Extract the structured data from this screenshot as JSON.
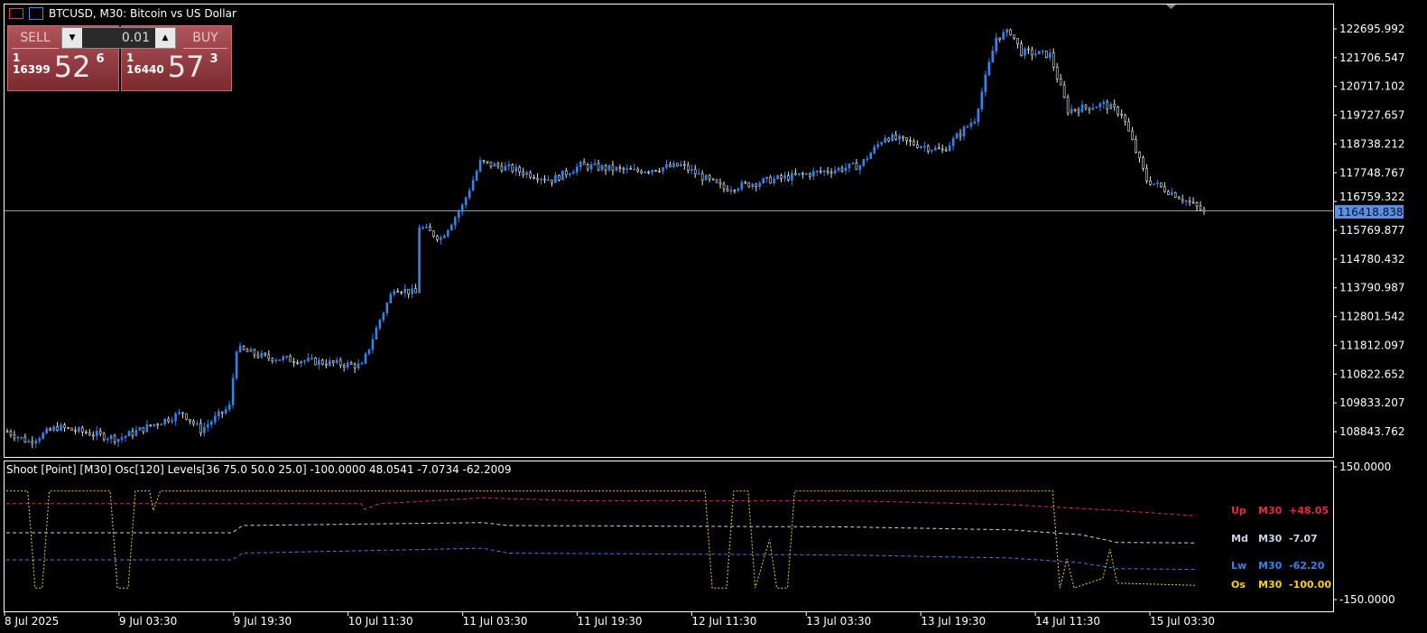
{
  "window": {
    "symbol_title": "BTCUSD, M30:  Bitcoin vs US Dollar"
  },
  "trade_panel": {
    "sell_label": "SELL",
    "buy_label": "BUY",
    "lot_value": "0.01",
    "sell_price": {
      "prefix_top": "1",
      "prefix_bottom": "16399",
      "big": "52",
      "sup": "6"
    },
    "buy_price": {
      "prefix_top": "1",
      "prefix_bottom": "16440",
      "big": "57",
      "sup": "3"
    }
  },
  "price_axis": {
    "labels": [
      "122695.992",
      "121706.547",
      "120717.102",
      "119727.657",
      "118738.212",
      "117748.767",
      "116759.322",
      "115769.877",
      "114780.432",
      "113790.987",
      "112801.542",
      "111812.097",
      "110822.652",
      "109833.207",
      "108843.762"
    ],
    "current_price": "116418.838",
    "current_price_color": "#5b8fe0"
  },
  "time_axis": {
    "labels": [
      "8 Jul 2025",
      "9 Jul 03:30",
      "9 Jul 19:30",
      "10 Jul 11:30",
      "11 Jul 03:30",
      "11 Jul 19:30",
      "12 Jul 11:30",
      "13 Jul 03:30",
      "13 Jul 19:30",
      "14 Jul 11:30",
      "15 Jul 03:30"
    ]
  },
  "colors": {
    "bull": "#2f86f0",
    "bear": "#e8e8e8",
    "up": "#e8283c",
    "md": "#c8d4e8",
    "lw": "#2f86f0",
    "os": "#ffd200"
  },
  "chart_data": {
    "type": "candlestick",
    "timeframe": "M30",
    "approx_close_path": [
      [
        0,
        108850
      ],
      [
        6,
        108500
      ],
      [
        14,
        109000
      ],
      [
        31,
        108600
      ],
      [
        49,
        109500
      ],
      [
        54,
        108900
      ],
      [
        62,
        109700
      ],
      [
        64,
        111700
      ],
      [
        72,
        111400
      ],
      [
        82,
        111300
      ],
      [
        99,
        111100
      ],
      [
        104,
        112700
      ],
      [
        108,
        113800
      ],
      [
        114,
        113600
      ],
      [
        115,
        115900
      ],
      [
        121,
        115500
      ],
      [
        127,
        116600
      ],
      [
        132,
        118100
      ],
      [
        140,
        117900
      ],
      [
        152,
        117500
      ],
      [
        160,
        118000
      ],
      [
        175,
        117800
      ],
      [
        188,
        118000
      ],
      [
        200,
        117200
      ],
      [
        213,
        117500
      ],
      [
        238,
        118000
      ],
      [
        245,
        119000
      ],
      [
        261,
        118500
      ],
      [
        270,
        119600
      ],
      [
        276,
        122400
      ],
      [
        280,
        122600
      ],
      [
        283,
        121900
      ],
      [
        291,
        121800
      ],
      [
        296,
        119900
      ],
      [
        306,
        120100
      ],
      [
        311,
        119800
      ],
      [
        318,
        117500
      ],
      [
        326,
        117000
      ],
      [
        334,
        116419
      ]
    ],
    "indicator": {
      "legend": "Shoot [Point] [M30]  Osc[120]  Levels[36 75.0 50.0 25.0] -100.0000 48.0541 -7.0734 -62.2009",
      "ylim": [
        -150,
        150
      ],
      "axis_labels": [
        "150.0000",
        "-150.0000"
      ],
      "up": [
        [
          0,
          74
        ],
        [
          99,
          74
        ],
        [
          100,
          62
        ],
        [
          104,
          74
        ],
        [
          133,
          86
        ],
        [
          160,
          80
        ],
        [
          235,
          80
        ],
        [
          280,
          72
        ],
        [
          310,
          60
        ],
        [
          334,
          48
        ]
      ],
      "md": [
        [
          0,
          14
        ],
        [
          63,
          14
        ],
        [
          66,
          29
        ],
        [
          133,
          35
        ],
        [
          140,
          29
        ],
        [
          235,
          26
        ],
        [
          280,
          20
        ],
        [
          300,
          10
        ],
        [
          310,
          -6
        ],
        [
          334,
          -7
        ]
      ],
      "lw": [
        [
          0,
          -42
        ],
        [
          63,
          -42
        ],
        [
          66,
          -28
        ],
        [
          133,
          -18
        ],
        [
          140,
          -28
        ],
        [
          235,
          -32
        ],
        [
          280,
          -38
        ],
        [
          300,
          -48
        ],
        [
          310,
          -60
        ],
        [
          334,
          -62
        ]
      ],
      "os": [
        [
          0,
          100
        ],
        [
          6,
          100
        ],
        [
          8,
          -100
        ],
        [
          10,
          -100
        ],
        [
          12,
          100
        ],
        [
          29,
          100
        ],
        [
          31,
          -100
        ],
        [
          34,
          -100
        ],
        [
          36,
          100
        ],
        [
          40,
          100
        ],
        [
          41,
          60
        ],
        [
          43,
          100
        ],
        [
          195,
          100
        ],
        [
          197,
          -100
        ],
        [
          201,
          -100
        ],
        [
          203,
          100
        ],
        [
          207,
          100
        ],
        [
          209,
          -100
        ],
        [
          213,
          0
        ],
        [
          215,
          -100
        ],
        [
          218,
          -100
        ],
        [
          220,
          100
        ],
        [
          292,
          100
        ],
        [
          294,
          -100
        ],
        [
          296,
          -40
        ],
        [
          298,
          -100
        ],
        [
          306,
          -80
        ],
        [
          308,
          -20
        ],
        [
          310,
          -90
        ],
        [
          334,
          -95
        ]
      ],
      "rows": [
        {
          "name": "Up",
          "tf": "M30",
          "value": "+48.05",
          "color": "#e8283c"
        },
        {
          "name": "Md",
          "tf": "M30",
          "value": "-7.07",
          "color": "#c8d4e8"
        },
        {
          "name": "Lw",
          "tf": "M30",
          "value": "-62.20",
          "color": "#2f86f0"
        },
        {
          "name": "Os",
          "tf": "M30",
          "value": "-100.00",
          "color": "#ffd200"
        }
      ]
    }
  }
}
